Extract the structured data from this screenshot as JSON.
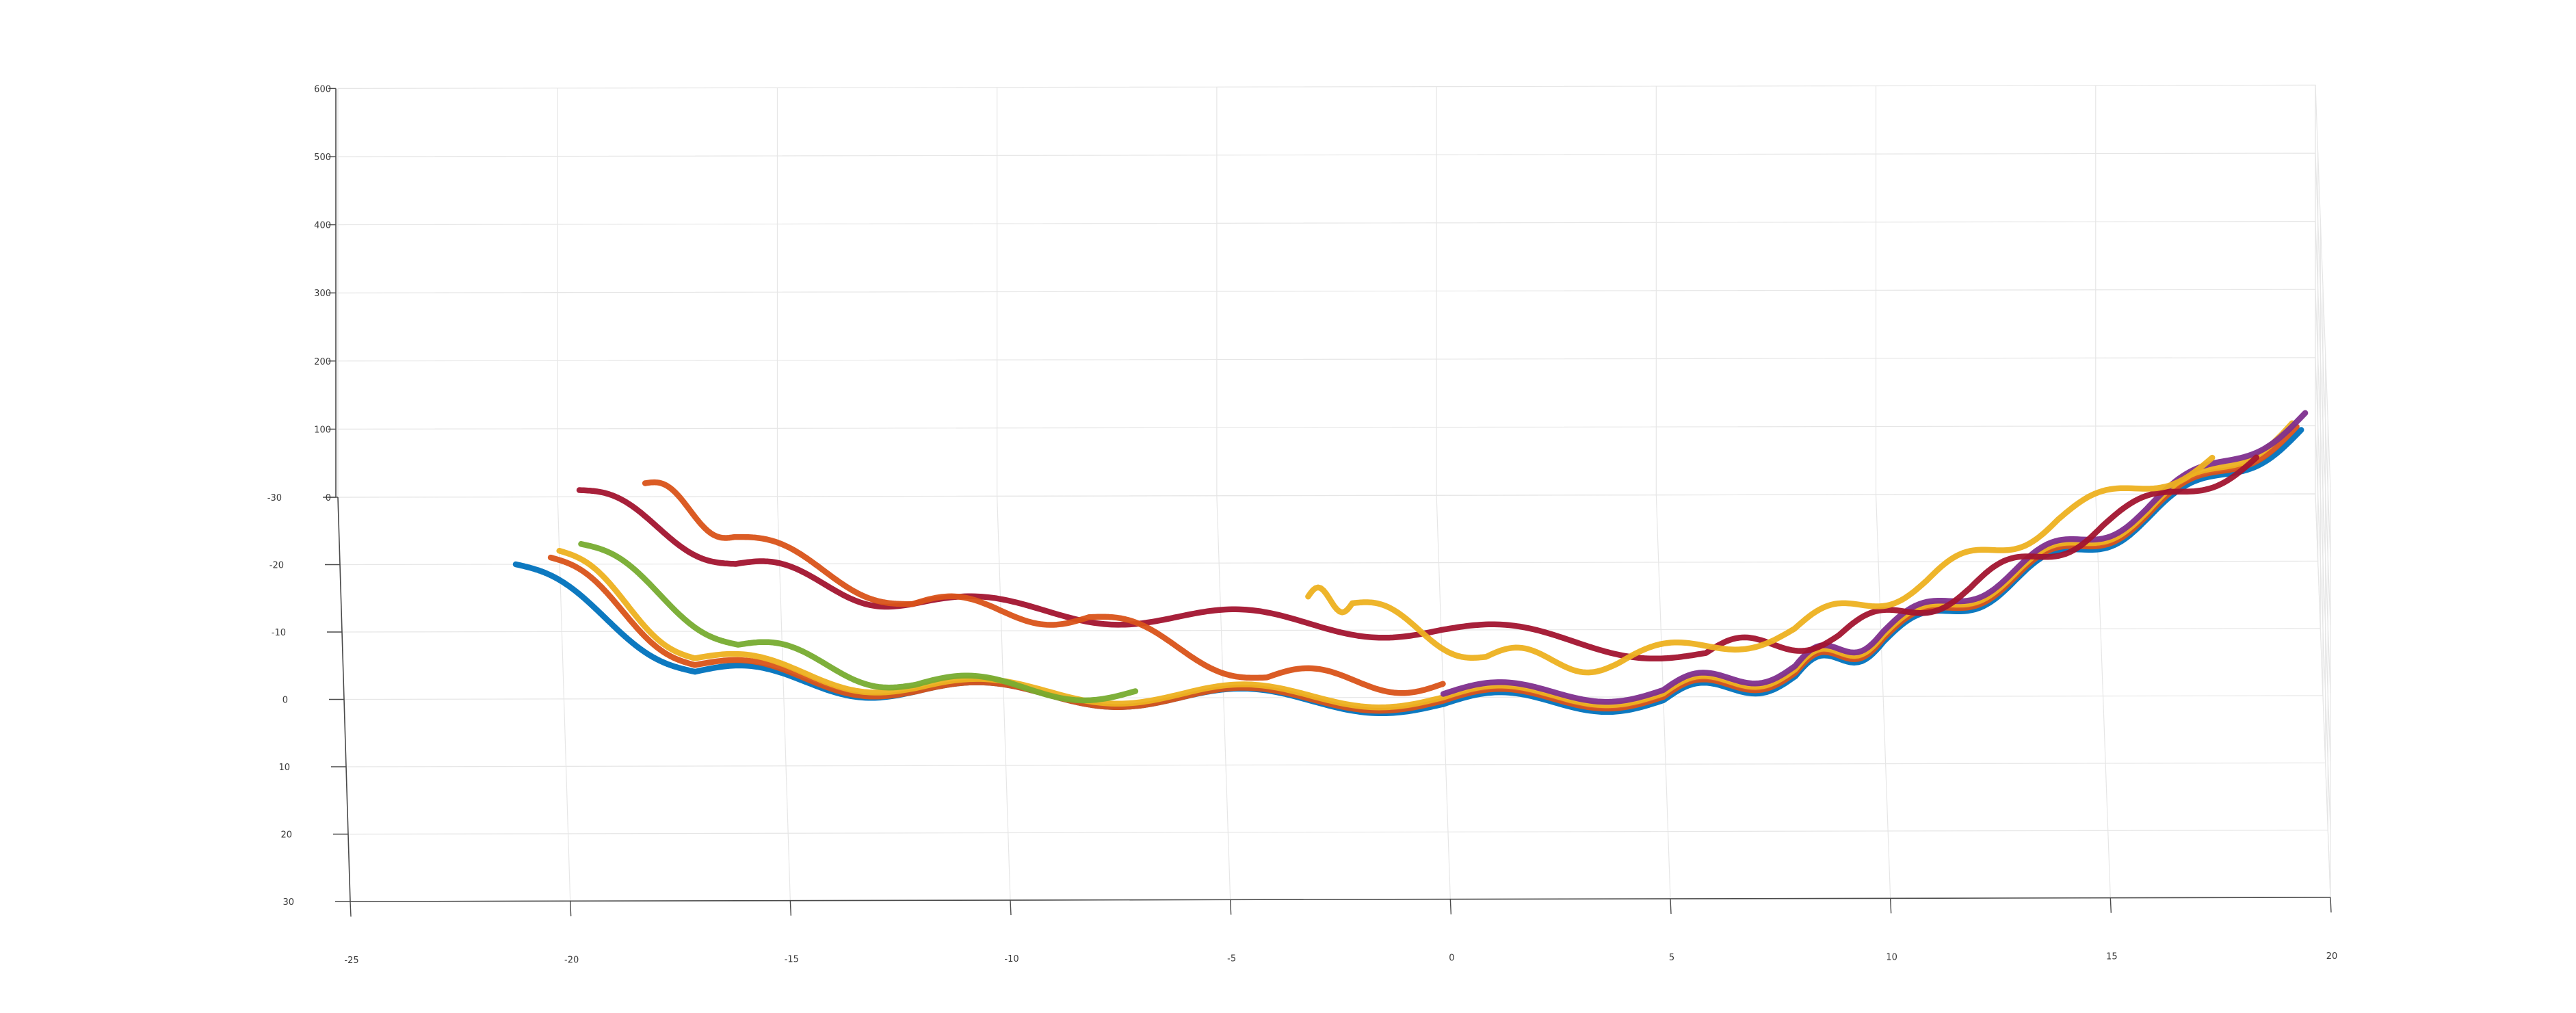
{
  "chart_data": {
    "type": "line",
    "projection": "3d",
    "title": "",
    "xlabel": "",
    "ylabel": "",
    "zlabel": "",
    "grid": true,
    "xlim": [
      -25,
      20
    ],
    "ylim": [
      -30,
      30
    ],
    "zlim": [
      0,
      600
    ],
    "x_ticks": [
      -25,
      -20,
      -15,
      -10,
      -5,
      0,
      5,
      10,
      15,
      20
    ],
    "y_ticks": [
      -30,
      -20,
      -10,
      0,
      10,
      20,
      30
    ],
    "z_ticks": [
      0,
      100,
      200,
      300,
      400,
      500,
      600
    ],
    "series": [
      {
        "color": "#0072BD",
        "points": [
          [
            19.5,
            1,
            400
          ],
          [
            16,
            1,
            270
          ],
          [
            13,
            1,
            180
          ],
          [
            10,
            1,
            90
          ],
          [
            8,
            1,
            40
          ],
          [
            5,
            1,
            5
          ],
          [
            0,
            1,
            0
          ],
          [
            -6,
            0,
            0
          ],
          [
            -12,
            -1,
            0
          ],
          [
            -17,
            -4,
            0
          ],
          [
            -21,
            -20,
            0
          ]
        ]
      },
      {
        "color": "#D95319",
        "points": [
          [
            19.4,
            0.5,
            400
          ],
          [
            16,
            0.5,
            270
          ],
          [
            13,
            0.5,
            180
          ],
          [
            10,
            0.5,
            90
          ],
          [
            8,
            0.5,
            40
          ],
          [
            5,
            0.5,
            5
          ],
          [
            0,
            0.5,
            0
          ],
          [
            -6,
            0,
            0
          ],
          [
            -12,
            -1,
            0
          ],
          [
            -17,
            -5,
            0
          ],
          [
            -20.2,
            -21,
            0
          ]
        ]
      },
      {
        "color": "#EDB120",
        "points": [
          [
            19.3,
            0,
            400
          ],
          [
            16,
            0,
            270
          ],
          [
            13,
            0,
            180
          ],
          [
            10,
            0,
            90
          ],
          [
            8,
            0,
            40
          ],
          [
            5,
            0,
            5
          ],
          [
            0,
            0,
            0
          ],
          [
            -6,
            -0.5,
            0
          ],
          [
            -12,
            -1.5,
            0
          ],
          [
            -17,
            -6,
            0
          ],
          [
            -20,
            -22,
            0
          ]
        ]
      },
      {
        "color": "#7E2F8E",
        "points": [
          [
            19.6,
            -0.5,
            410
          ],
          [
            16,
            -0.5,
            270
          ],
          [
            13,
            -0.5,
            180
          ],
          [
            10,
            -0.5,
            90
          ],
          [
            8,
            -0.5,
            40
          ],
          [
            5,
            -0.5,
            5
          ],
          [
            0,
            -0.5,
            0
          ]
        ]
      },
      {
        "color": "#77AC30",
        "points": [
          [
            -7,
            -1,
            0
          ],
          [
            -12,
            -2,
            0
          ],
          [
            -16,
            -8,
            0
          ],
          [
            -19.5,
            -23,
            0
          ]
        ]
      },
      {
        "color": "#A2142F",
        "points": [
          [
            18.5,
            -2,
            330
          ],
          [
            15,
            -2,
            230
          ],
          [
            12,
            -2,
            140
          ],
          [
            9,
            -2,
            70
          ],
          [
            6,
            -5,
            15
          ],
          [
            0,
            -10,
            0
          ],
          [
            -6,
            -12,
            0
          ],
          [
            -12,
            -14,
            0
          ],
          [
            -16,
            -20,
            0
          ],
          [
            -19.5,
            -31,
            0
          ]
        ]
      },
      {
        "color": "#D95319",
        "points": [
          [
            0,
            -2,
            0
          ],
          [
            -4,
            -3,
            0
          ],
          [
            -8,
            -12,
            0
          ],
          [
            -12,
            -14,
            0
          ],
          [
            -16,
            -24,
            0
          ],
          [
            -18,
            -32,
            0
          ]
        ]
      },
      {
        "color": "#EDB120",
        "points": [
          [
            17.5,
            -3,
            320
          ],
          [
            14,
            -3,
            230
          ],
          [
            11,
            -3,
            140
          ],
          [
            8,
            -3,
            70
          ],
          [
            4,
            -4,
            10
          ],
          [
            1,
            -6,
            0
          ],
          [
            -2,
            -14,
            0
          ],
          [
            -3,
            -15,
            0
          ]
        ]
      }
    ]
  }
}
